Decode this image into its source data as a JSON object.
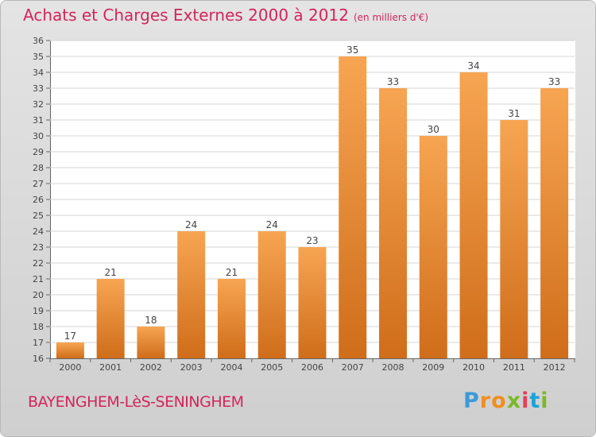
{
  "title": "Achats et Charges Externes 2000 à 2012",
  "unit": "(en milliers d'€)",
  "city": "BAYENGHEM-LèS-SENINGHEM",
  "logo": {
    "letters": [
      "P",
      "r",
      "o",
      "x",
      "i",
      "t",
      "i"
    ],
    "colors": [
      "#3b9ad8",
      "#f08e1f",
      "#f08e1f",
      "#7ab929",
      "#e63f5c",
      "#1aa4d8",
      "#7ab929"
    ]
  },
  "colors": {
    "bar_top": "#f7a552",
    "bar_bottom": "#cf6d1a",
    "title": "#d2255c"
  },
  "chart_data": {
    "type": "bar",
    "categories": [
      "2000",
      "2001",
      "2002",
      "2003",
      "2004",
      "2005",
      "2006",
      "2007",
      "2008",
      "2009",
      "2010",
      "2011",
      "2012"
    ],
    "values": [
      17,
      21,
      18,
      24,
      21,
      24,
      23,
      35,
      33,
      30,
      34,
      31,
      33
    ],
    "ylim": [
      16,
      36
    ],
    "ytick_step": 1,
    "grid": true
  }
}
